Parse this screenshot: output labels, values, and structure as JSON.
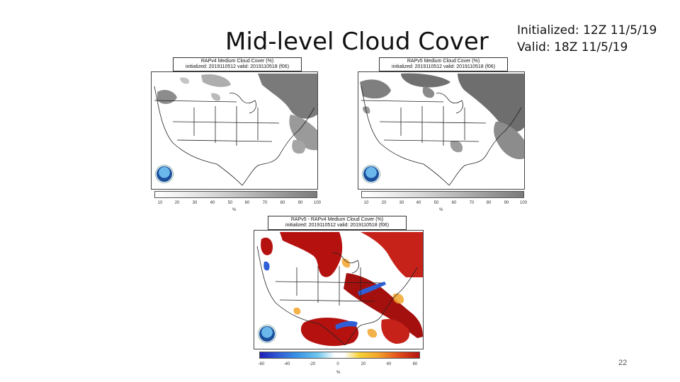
{
  "slide": {
    "title": "Mid-level Cloud Cover",
    "initialized": "Initialized: 12Z 11/5/19",
    "valid": "Valid: 18Z 11/5/19",
    "page_number": "22"
  },
  "panels": {
    "rapv4": {
      "title_line1": "RAPv4 Medium Cloud Cover (%)",
      "title_line2": "initialized: 2019110512 valid: 2019110518 (f06)",
      "colorbar_ticks": [
        "10",
        "20",
        "30",
        "40",
        "50",
        "60",
        "70",
        "80",
        "90",
        "100"
      ],
      "unit": "%"
    },
    "rapv5": {
      "title_line1": "RAPv5 Medium Cloud Cover (%)",
      "title_line2": "initialized: 2019110512 valid: 2019110518 (f06)",
      "colorbar_ticks": [
        "10",
        "20",
        "30",
        "40",
        "50",
        "60",
        "70",
        "80",
        "90",
        "100"
      ],
      "unit": "%"
    },
    "diff": {
      "title_line1": "RAPv5 - RAPv4 Medium Cloud Cover (%)",
      "title_line2": "initialized: 2019110512 valid: 2019110518 (f06)",
      "colorbar_ticks": [
        "-60",
        "-40",
        "-20",
        "0",
        "20",
        "40",
        "60"
      ],
      "unit": "%"
    }
  },
  "colors": {
    "cloud_gray": "#8c8c8c",
    "diff_positive": "#b5120f",
    "diff_negative": "#2f5fd6"
  }
}
